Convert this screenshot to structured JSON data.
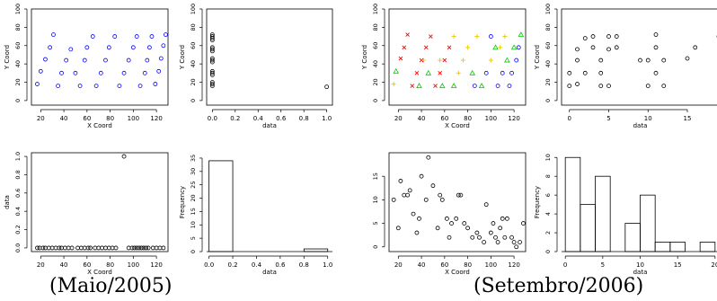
{
  "captions": {
    "left": "(Maio/2005)",
    "right": "(Setembro/2006)"
  },
  "colors": {
    "blue": "#0000ff",
    "red": "#ff0000",
    "green": "#00cc00",
    "yellow": "#e6c800",
    "black": "#000000"
  },
  "chart_data": [
    {
      "type": "scatter",
      "xlabel": "X Coord",
      "ylabel": "Y Coord",
      "xlim": [
        12,
        130
      ],
      "ylim": [
        -5,
        100
      ],
      "xticks": [
        20,
        40,
        60,
        80,
        100,
        120
      ],
      "yticks": [
        0,
        20,
        40,
        60,
        80,
        100
      ],
      "series": [
        {
          "color": "blue",
          "points": [
            [
              17,
              18
            ],
            [
              20,
              32
            ],
            [
              24,
              45
            ],
            [
              28,
              58
            ],
            [
              31,
              72
            ],
            [
              35,
              16
            ],
            [
              38,
              30
            ],
            [
              42,
              44
            ],
            [
              46,
              56
            ],
            [
              50,
              30
            ],
            [
              54,
              16
            ],
            [
              58,
              44
            ],
            [
              60,
              58
            ],
            [
              65,
              70
            ],
            [
              68,
              16
            ],
            [
              72,
              30
            ],
            [
              76,
              44
            ],
            [
              79,
              58
            ],
            [
              84,
              70
            ],
            [
              88,
              16
            ],
            [
              92,
              30
            ],
            [
              96,
              44
            ],
            [
              100,
              58
            ],
            [
              103,
              70
            ],
            [
              106,
              16
            ],
            [
              110,
              30
            ],
            [
              112,
              44
            ],
            [
              114,
              58
            ],
            [
              116,
              70
            ],
            [
              119,
              18
            ],
            [
              122,
              32
            ],
            [
              124,
              46
            ],
            [
              126,
              60
            ],
            [
              128,
              72
            ]
          ]
        }
      ]
    },
    {
      "type": "scatter",
      "xlabel": "data",
      "ylabel": "Y Coord",
      "xlim": [
        -0.05,
        1.05
      ],
      "ylim": [
        -5,
        100
      ],
      "xticks": [
        0.0,
        0.2,
        0.4,
        0.6,
        0.8,
        1.0
      ],
      "yticks": [
        0,
        20,
        40,
        60,
        80,
        100
      ],
      "series": [
        {
          "color": "black",
          "points": [
            [
              0,
              16
            ],
            [
              0,
              18
            ],
            [
              0,
              20
            ],
            [
              0,
              28
            ],
            [
              0,
              30
            ],
            [
              0,
              32
            ],
            [
              0,
              42
            ],
            [
              0,
              44
            ],
            [
              0,
              46
            ],
            [
              0,
              54
            ],
            [
              0,
              56
            ],
            [
              0,
              58
            ],
            [
              0,
              66
            ],
            [
              0,
              68
            ],
            [
              0,
              70
            ],
            [
              0,
              72
            ],
            [
              1,
              15
            ]
          ]
        }
      ]
    },
    {
      "type": "scatter",
      "xlabel": "X Coord",
      "ylabel": "data",
      "xlim": [
        12,
        130
      ],
      "ylim": [
        -0.04,
        1.04
      ],
      "xticks": [
        20,
        40,
        60,
        80,
        100,
        120
      ],
      "yticks": [
        0.0,
        0.2,
        0.4,
        0.6,
        0.8,
        1.0
      ],
      "series": [
        {
          "color": "black",
          "points": [
            [
              17,
              0
            ],
            [
              19,
              0
            ],
            [
              22,
              0
            ],
            [
              24,
              0
            ],
            [
              27,
              0
            ],
            [
              30,
              0
            ],
            [
              33,
              0
            ],
            [
              36,
              0
            ],
            [
              38,
              0
            ],
            [
              41,
              0
            ],
            [
              44,
              0
            ],
            [
              47,
              0
            ],
            [
              52,
              0
            ],
            [
              55,
              0
            ],
            [
              58,
              0
            ],
            [
              61,
              0
            ],
            [
              63,
              0
            ],
            [
              67,
              0
            ],
            [
              70,
              0
            ],
            [
              73,
              0
            ],
            [
              76,
              0
            ],
            [
              79,
              0
            ],
            [
              82,
              0
            ],
            [
              85,
              0
            ],
            [
              92,
              1
            ],
            [
              96,
              0
            ],
            [
              99,
              0
            ],
            [
              101,
              0
            ],
            [
              103,
              0
            ],
            [
              105,
              0
            ],
            [
              107,
              0
            ],
            [
              109,
              0
            ],
            [
              111,
              0
            ],
            [
              113,
              0
            ],
            [
              117,
              0
            ],
            [
              120,
              0
            ],
            [
              123,
              0
            ],
            [
              126,
              0
            ]
          ]
        }
      ]
    },
    {
      "type": "bar",
      "xlabel": "data",
      "ylabel": "Frequency",
      "xlim": [
        -0.02,
        1.04
      ],
      "ylim": [
        0,
        37
      ],
      "xticks": [
        0.0,
        0.2,
        0.4,
        0.6,
        0.8,
        1.0
      ],
      "yticks": [
        0,
        5,
        10,
        15,
        20,
        25,
        30,
        35
      ],
      "bins": [
        [
          0.0,
          0.2,
          34
        ],
        [
          0.2,
          0.4,
          0
        ],
        [
          0.4,
          0.6,
          0
        ],
        [
          0.6,
          0.8,
          0
        ],
        [
          0.8,
          1.0,
          1
        ]
      ]
    },
    {
      "type": "scatter",
      "xlabel": "X Coord",
      "ylabel": "Y Coord",
      "xlim": [
        12,
        130
      ],
      "ylim": [
        -5,
        100
      ],
      "xticks": [
        20,
        40,
        60,
        80,
        100,
        120
      ],
      "yticks": [
        0,
        20,
        40,
        60,
        80,
        100
      ],
      "series": [
        {
          "color": "red",
          "marker": "cross",
          "points": [
            [
              22,
              46
            ],
            [
              25,
              58
            ],
            [
              28,
              72
            ],
            [
              32,
              16
            ],
            [
              36,
              30
            ],
            [
              40,
              44
            ],
            [
              44,
              58
            ],
            [
              48,
              70
            ],
            [
              52,
              16
            ],
            [
              56,
              30
            ],
            [
              60,
              44
            ],
            [
              64,
              58
            ]
          ]
        },
        {
          "color": "yellow",
          "marker": "plus",
          "points": [
            [
              16,
              18
            ],
            [
              42,
              44
            ],
            [
              56,
              44
            ],
            [
              68,
              70
            ],
            [
              72,
              30
            ],
            [
              76,
              44
            ],
            [
              80,
              58
            ],
            [
              88,
              70
            ],
            [
              100,
              44
            ],
            [
              108,
              58
            ],
            [
              112,
              70
            ]
          ]
        },
        {
          "color": "green",
          "marker": "triangle",
          "points": [
            [
              18,
              32
            ],
            [
              38,
              16
            ],
            [
              46,
              30
            ],
            [
              58,
              16
            ],
            [
              68,
              16
            ],
            [
              84,
              30
            ],
            [
              92,
              16
            ],
            [
              104,
              58
            ],
            [
              114,
              44
            ],
            [
              120,
              58
            ],
            [
              126,
              72
            ]
          ]
        },
        {
          "color": "blue",
          "marker": "circle",
          "points": [
            [
              86,
              16
            ],
            [
              96,
              30
            ],
            [
              100,
              70
            ],
            [
              106,
              16
            ],
            [
              110,
              30
            ],
            [
              116,
              16
            ],
            [
              118,
              30
            ],
            [
              122,
              44
            ],
            [
              124,
              58
            ]
          ]
        }
      ]
    },
    {
      "type": "scatter",
      "xlabel": "data",
      "ylabel": "Y Coord",
      "xlim": [
        -1,
        19
      ],
      "ylim": [
        -5,
        100
      ],
      "xticks": [
        0,
        5,
        10,
        15
      ],
      "yticks": [
        0,
        20,
        40,
        60,
        80,
        100
      ],
      "series": [
        {
          "color": "black",
          "points": [
            [
              0,
              16
            ],
            [
              0,
              30
            ],
            [
              1,
              18
            ],
            [
              1,
              44
            ],
            [
              1,
              56
            ],
            [
              2,
              68
            ],
            [
              2,
              30
            ],
            [
              3,
              58
            ],
            [
              3,
              70
            ],
            [
              4,
              16
            ],
            [
              4,
              44
            ],
            [
              4,
              30
            ],
            [
              5,
              16
            ],
            [
              5,
              56
            ],
            [
              5,
              70
            ],
            [
              6,
              58
            ],
            [
              6,
              70
            ],
            [
              9,
              44
            ],
            [
              10,
              16
            ],
            [
              10,
              44
            ],
            [
              11,
              58
            ],
            [
              11,
              72
            ],
            [
              11,
              30
            ],
            [
              12,
              16
            ],
            [
              12,
              44
            ],
            [
              15,
              46
            ],
            [
              16,
              58
            ],
            [
              19,
              70
            ]
          ]
        }
      ]
    },
    {
      "type": "scatter",
      "xlabel": "X Coord",
      "ylabel": "",
      "xlim": [
        12,
        130
      ],
      "ylim": [
        -1,
        20
      ],
      "xticks": [
        20,
        40,
        60,
        80,
        100,
        120
      ],
      "yticks": [
        0,
        5,
        10,
        15
      ],
      "series": [
        {
          "color": "black",
          "points": [
            [
              16,
              10
            ],
            [
              20,
              4
            ],
            [
              22,
              14
            ],
            [
              25,
              11
            ],
            [
              28,
              11
            ],
            [
              30,
              12
            ],
            [
              33,
              7
            ],
            [
              36,
              3
            ],
            [
              38,
              6
            ],
            [
              40,
              15
            ],
            [
              44,
              10
            ],
            [
              46,
              19
            ],
            [
              50,
              13
            ],
            [
              54,
              4
            ],
            [
              56,
              11
            ],
            [
              58,
              10
            ],
            [
              62,
              6
            ],
            [
              64,
              2
            ],
            [
              66,
              5
            ],
            [
              70,
              6
            ],
            [
              72,
              11
            ],
            [
              74,
              11
            ],
            [
              77,
              5
            ],
            [
              80,
              4
            ],
            [
              84,
              2
            ],
            [
              88,
              3
            ],
            [
              90,
              2
            ],
            [
              94,
              1
            ],
            [
              96,
              9
            ],
            [
              100,
              3
            ],
            [
              102,
              5
            ],
            [
              104,
              2
            ],
            [
              106,
              1
            ],
            [
              108,
              4
            ],
            [
              110,
              6
            ],
            [
              112,
              2
            ],
            [
              114,
              6
            ],
            [
              118,
              2
            ],
            [
              120,
              1
            ],
            [
              122,
              0
            ],
            [
              125,
              1
            ],
            [
              128,
              5
            ]
          ]
        }
      ]
    },
    {
      "type": "bar",
      "xlabel": "data",
      "ylabel": "Frequency",
      "xlim": [
        -0.5,
        20.5
      ],
      "ylim": [
        0,
        10.5
      ],
      "xticks": [
        0,
        5,
        10,
        15,
        20
      ],
      "yticks": [
        0,
        2,
        4,
        6,
        8,
        10
      ],
      "bins": [
        [
          0,
          2,
          10
        ],
        [
          2,
          4,
          5
        ],
        [
          4,
          6,
          8
        ],
        [
          6,
          8,
          0
        ],
        [
          8,
          10,
          3
        ],
        [
          10,
          12,
          6
        ],
        [
          12,
          14,
          1
        ],
        [
          14,
          16,
          1
        ],
        [
          16,
          18,
          0
        ],
        [
          18,
          20,
          1
        ]
      ]
    }
  ]
}
